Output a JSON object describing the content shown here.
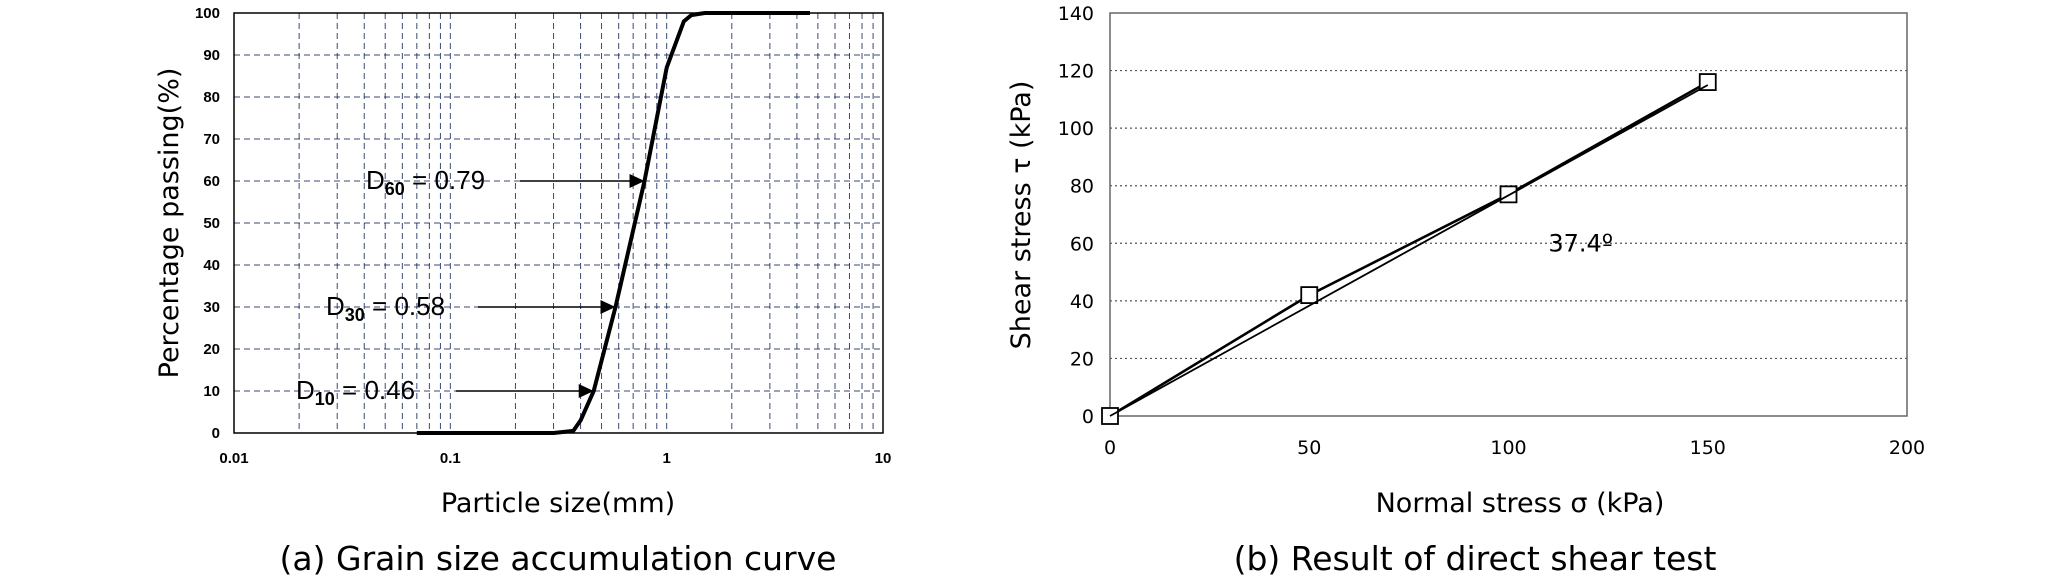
{
  "chart_data": [
    {
      "type": "line",
      "subtitle": "(a) Grain size accumulation curve",
      "xlabel": "Particle size(mm)",
      "ylabel": "Percentage passing(%)",
      "xscale": "log",
      "xlim": [
        0.01,
        10
      ],
      "ylim": [
        0,
        100
      ],
      "x_tick_labels": [
        "0.01",
        "0.1",
        "1",
        "10"
      ],
      "y_tick_labels": [
        "0",
        "10",
        "20",
        "30",
        "40",
        "50",
        "60",
        "70",
        "80",
        "90",
        "100"
      ],
      "grid": true,
      "series": [
        {
          "x": [
            0.07,
            0.3,
            0.37,
            0.4,
            0.46,
            0.58,
            0.79,
            1.0,
            1.2,
            1.3,
            1.5,
            2.0,
            3.0,
            4.6
          ],
          "y": [
            0,
            0,
            0.5,
            3,
            10,
            30,
            60,
            87,
            98,
            99.5,
            100,
            100,
            100,
            100
          ]
        }
      ],
      "annotations": [
        {
          "label": "D",
          "sub": "60",
          "text": " = 0.79",
          "x": 0.79,
          "y": 60
        },
        {
          "label": "D",
          "sub": "30",
          "text": " = 0.58",
          "x": 0.58,
          "y": 30
        },
        {
          "label": "D",
          "sub": "10",
          "text": " = 0.46",
          "x": 0.46,
          "y": 10
        }
      ]
    },
    {
      "type": "line",
      "subtitle": "(b) Result of direct shear test",
      "xlabel": "Normal stress σ (kPa)",
      "ylabel": "Shear stress τ (kPa)",
      "xlim": [
        0,
        200
      ],
      "ylim": [
        0,
        140
      ],
      "x_tick_labels": [
        "0",
        "50",
        "100",
        "150",
        "200"
      ],
      "y_tick_labels": [
        "0",
        "20",
        "40",
        "60",
        "80",
        "100",
        "120",
        "140"
      ],
      "grid": "horizontal dotted",
      "series": [
        {
          "marker": "square",
          "x": [
            0,
            50,
            100,
            150
          ],
          "y": [
            0,
            42,
            77,
            116
          ]
        },
        {
          "marker": "none",
          "x": [
            0,
            150
          ],
          "y": [
            0,
            115
          ]
        }
      ],
      "annotations": [
        {
          "text": "37.4º",
          "x": 110,
          "y": 60
        }
      ]
    }
  ]
}
